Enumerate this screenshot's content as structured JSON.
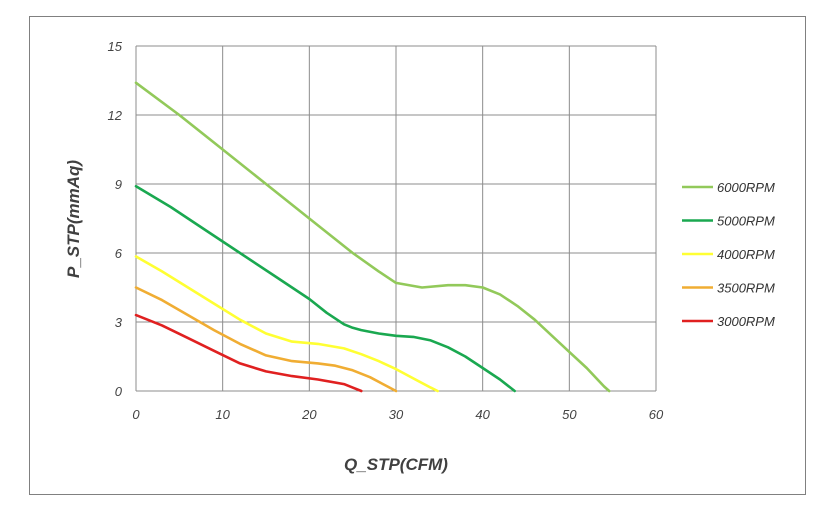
{
  "chart_data": {
    "type": "line",
    "xlabel": "Q_STP(CFM)",
    "ylabel": "P_STP(mmAq)",
    "xlim": [
      0,
      60
    ],
    "ylim": [
      0,
      15
    ],
    "x_ticks": [
      0,
      10,
      20,
      30,
      40,
      50,
      60
    ],
    "x_tick_labels": [
      "0",
      "10",
      "20",
      "30",
      "40",
      "50",
      "60"
    ],
    "y_ticks": [
      0,
      3,
      6,
      9,
      12,
      15
    ],
    "y_tick_labels": [
      "0",
      "3",
      "6",
      "9",
      "12",
      "15"
    ],
    "grid": true,
    "legend_position": "right",
    "series": [
      {
        "name": "6000RPM",
        "color": "#92c95a",
        "x": [
          0,
          5,
          10,
          15,
          20,
          25,
          28,
          30,
          33,
          36,
          38,
          40,
          42,
          44,
          46,
          48,
          50,
          52,
          54,
          54.6
        ],
        "y": [
          13.4,
          12.0,
          10.5,
          9.0,
          7.5,
          6.0,
          5.2,
          4.7,
          4.5,
          4.6,
          4.6,
          4.5,
          4.2,
          3.7,
          3.1,
          2.4,
          1.7,
          1.0,
          0.2,
          0
        ]
      },
      {
        "name": "5000RPM",
        "color": "#1aa850",
        "x": [
          0,
          4,
          8,
          12,
          16,
          20,
          22,
          24,
          25,
          26,
          28,
          30,
          32,
          34,
          36,
          38,
          40,
          42,
          43.7
        ],
        "y": [
          8.9,
          8.0,
          7.0,
          6.0,
          5.0,
          4.0,
          3.4,
          2.9,
          2.75,
          2.65,
          2.5,
          2.4,
          2.35,
          2.2,
          1.9,
          1.5,
          1.0,
          0.5,
          0
        ]
      },
      {
        "name": "4000RPM",
        "color": "#ffff33",
        "x": [
          0,
          3,
          6,
          9,
          12,
          15,
          18,
          21,
          24,
          26,
          28,
          30,
          32,
          34,
          34.8
        ],
        "y": [
          5.85,
          5.2,
          4.5,
          3.8,
          3.1,
          2.5,
          2.15,
          2.05,
          1.85,
          1.6,
          1.3,
          0.95,
          0.55,
          0.15,
          0
        ]
      },
      {
        "name": "3500RPM",
        "color": "#f0ad33",
        "x": [
          0,
          3,
          6,
          9,
          12,
          15,
          18,
          21,
          23,
          25,
          27,
          29,
          30
        ],
        "y": [
          4.5,
          3.95,
          3.3,
          2.65,
          2.05,
          1.55,
          1.3,
          1.2,
          1.1,
          0.9,
          0.6,
          0.2,
          0
        ]
      },
      {
        "name": "3000RPM",
        "color": "#e02020",
        "x": [
          0,
          3,
          6,
          9,
          12,
          15,
          18,
          21,
          24,
          25,
          26
        ],
        "y": [
          3.3,
          2.85,
          2.3,
          1.75,
          1.2,
          0.85,
          0.65,
          0.5,
          0.3,
          0.15,
          0
        ]
      }
    ]
  }
}
